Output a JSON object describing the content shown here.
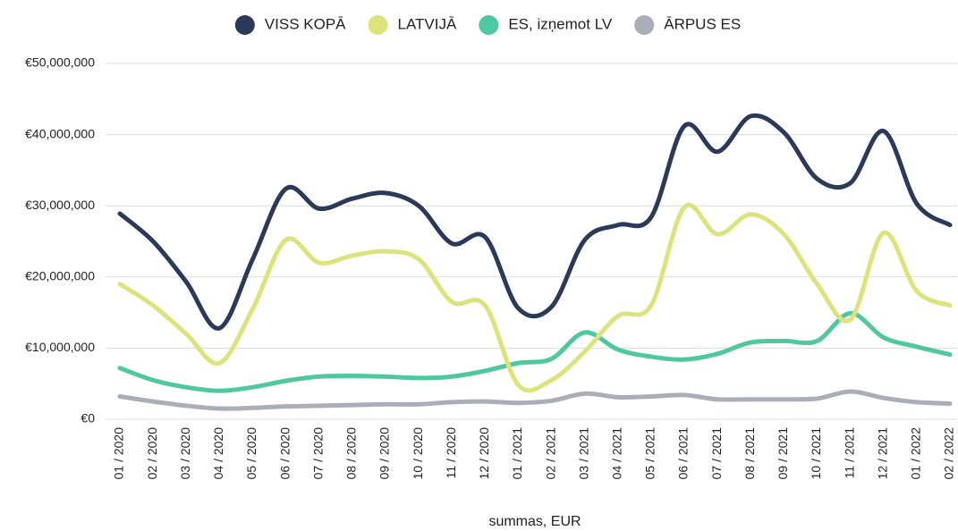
{
  "chart_data": {
    "type": "line",
    "x_label": "summas, EUR",
    "categories": [
      "01 / 2020",
      "02 / 2020",
      "03 / 2020",
      "04 / 2020",
      "05 / 2020",
      "06 / 2020",
      "07 / 2020",
      "08 / 2020",
      "09 / 2020",
      "10 / 2020",
      "11 / 2020",
      "12 / 2020",
      "01 / 2021",
      "02 / 2021",
      "03 / 2021",
      "04 / 2021",
      "05 / 2021",
      "06 / 2021",
      "07 / 2021",
      "08 / 2021",
      "09 / 2021",
      "10 / 2021",
      "11 / 2021",
      "12 / 2021",
      "01 / 2022",
      "02 / 2022"
    ],
    "series": [
      {
        "name": "VISS KOPĀ",
        "color": "#2b3a58",
        "values": [
          28900000,
          25000000,
          19300000,
          12800000,
          22500000,
          32400000,
          29600000,
          31000000,
          31800000,
          30000000,
          24700000,
          25600000,
          15600000,
          15800000,
          25200000,
          27300000,
          28400000,
          41200000,
          37600000,
          42600000,
          40300000,
          33800000,
          33200000,
          40500000,
          30300000,
          27300000
        ]
      },
      {
        "name": "LATVIJĀ",
        "color": "#dde37c",
        "values": [
          19000000,
          16000000,
          12000000,
          7900000,
          15500000,
          25200000,
          22000000,
          23000000,
          23600000,
          22500000,
          16500000,
          16000000,
          4800000,
          5500000,
          9500000,
          14500000,
          16000000,
          29800000,
          26000000,
          28800000,
          26000000,
          19000000,
          14000000,
          26200000,
          18000000,
          16000000
        ]
      },
      {
        "name": "ES, izņemot LV",
        "color": "#4fc7a0",
        "values": [
          7200000,
          5500000,
          4500000,
          4000000,
          4500000,
          5400000,
          6000000,
          6100000,
          6000000,
          5800000,
          6000000,
          6800000,
          7900000,
          8500000,
          12200000,
          9800000,
          8800000,
          8400000,
          9200000,
          10800000,
          11000000,
          11000000,
          14900000,
          11500000,
          10200000,
          9100000
        ]
      },
      {
        "name": "ĀRPUS ES",
        "color": "#a9aeb9",
        "values": [
          3200000,
          2500000,
          1900000,
          1500000,
          1600000,
          1800000,
          1900000,
          2000000,
          2100000,
          2100000,
          2400000,
          2500000,
          2300000,
          2600000,
          3600000,
          3100000,
          3200000,
          3400000,
          2800000,
          2800000,
          2800000,
          2900000,
          3900000,
          3000000,
          2400000,
          2200000
        ]
      }
    ],
    "ylim": [
      0,
      50000000
    ],
    "yticks": [
      {
        "value": 0,
        "label": "€0"
      },
      {
        "value": 10000000,
        "label": "€10,000,000"
      },
      {
        "value": 20000000,
        "label": "€20,000,000"
      },
      {
        "value": 30000000,
        "label": "€30,000,000"
      },
      {
        "value": 40000000,
        "label": "€40,000,000"
      },
      {
        "value": 50000000,
        "label": "€50,000,000"
      }
    ],
    "grid": true,
    "legend": "top"
  }
}
